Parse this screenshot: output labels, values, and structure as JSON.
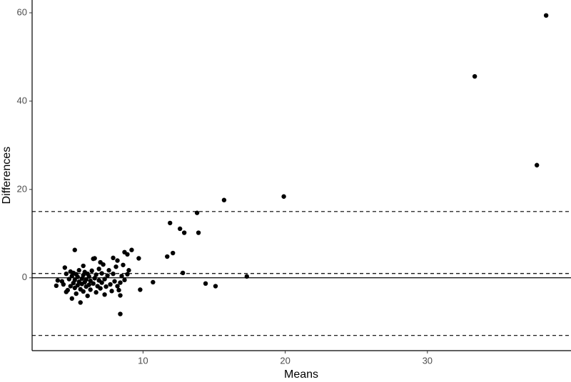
{
  "chart_data": {
    "type": "scatter",
    "xlabel": "Means",
    "ylabel": "Differences",
    "xlim": [
      2.2,
      40.1
    ],
    "ylim": [
      -16.5,
      62.9
    ],
    "xticks": [
      10,
      20,
      30
    ],
    "yticks": [
      0,
      20,
      40,
      60
    ],
    "color": "#000000",
    "grid": false,
    "hlines": [
      {
        "y": 0,
        "dash": false
      },
      {
        "y": 0.97,
        "dash": true
      },
      {
        "y": 15.0,
        "dash": true
      },
      {
        "y": -13.06,
        "dash": true
      }
    ],
    "x": [
      38.35,
      33.33,
      37.7,
      19.9,
      15.7,
      13.8,
      11.9,
      13.9,
      12.6,
      12.9,
      12.1,
      11.7,
      12.8,
      17.3,
      14.4,
      15.1,
      10.7,
      9.8,
      9.7,
      9.2,
      8.7,
      8.9,
      8.4,
      8.4,
      8.4,
      5.2,
      6.6,
      7.9,
      8.2,
      7.0,
      4.3,
      4.4,
      4.5,
      4.6,
      4.7,
      4.8,
      4.9,
      4.9,
      5.0,
      5.0,
      5.1,
      5.1,
      5.2,
      5.2,
      5.3,
      5.3,
      5.4,
      5.4,
      5.5,
      5.5,
      5.6,
      5.6,
      5.7,
      5.7,
      5.8,
      5.8,
      5.9,
      5.9,
      6.0,
      6.0,
      6.1,
      6.1,
      6.2,
      6.2,
      6.3,
      6.3,
      6.4,
      6.5,
      6.5,
      6.6,
      6.7,
      6.7,
      6.8,
      6.9,
      6.9,
      7.0,
      7.1,
      7.1,
      7.2,
      7.3,
      7.4,
      7.5,
      7.6,
      7.7,
      7.8,
      7.9,
      8.0,
      8.1,
      8.2,
      8.5,
      8.7,
      8.9,
      8.6,
      3.9,
      4.0,
      4.6,
      5.8,
      7.3,
      8.3,
      9.0
    ],
    "y": [
      59.4,
      45.6,
      25.5,
      18.4,
      17.6,
      14.7,
      12.4,
      10.2,
      11.1,
      10.2,
      5.6,
      4.8,
      1.1,
      0.3,
      -1.3,
      -1.9,
      -1.0,
      -2.7,
      4.4,
      6.3,
      5.8,
      5.3,
      -1.1,
      -4,
      -8.2,
      6.3,
      4.4,
      4.5,
      3.9,
      3.5,
      -0.8,
      -1.5,
      2.3,
      0.9,
      -2.8,
      -0.3,
      1.4,
      -1.9,
      -4.7,
      0.4,
      -1.2,
      1.1,
      -2.3,
      -0.5,
      0.8,
      -3.6,
      -1.7,
      0.2,
      -0.9,
      1.7,
      -2.6,
      -5.6,
      -0.2,
      -1.4,
      0.6,
      -3.1,
      -1.0,
      1.3,
      -2.0,
      -0.4,
      0.9,
      -4.1,
      -1.6,
      0.3,
      -2.7,
      -0.7,
      1.6,
      -1.3,
      4.3,
      -0.1,
      -3.3,
      0.7,
      -1.9,
      2.0,
      -0.6,
      -2.4,
      1.0,
      -1.1,
      3.0,
      -0.3,
      -2.0,
      0.5,
      1.7,
      -1.5,
      -3.0,
      0.9,
      -0.8,
      2.5,
      -1.9,
      0.4,
      -0.5,
      0.8,
      2.9,
      -1.8,
      -0.6,
      -3.2,
      2.7,
      -3.8,
      -2.8,
      1.7
    ]
  }
}
